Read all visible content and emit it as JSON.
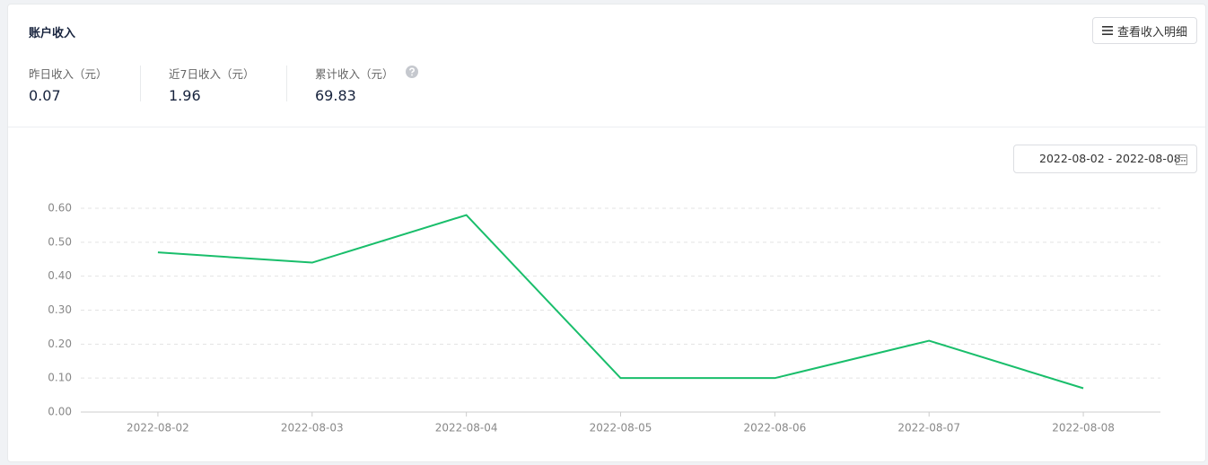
{
  "header": {
    "title": "账户收入",
    "button": "查看收入明细"
  },
  "stats": [
    {
      "label": "昨日收入（元）",
      "value": "0.07"
    },
    {
      "label": "近7日收入（元）",
      "value": "1.96"
    },
    {
      "label": "累计收入（元）",
      "value": "69.83"
    }
  ],
  "date_range": "2022-08-02 - 2022-08-08",
  "chart_data": {
    "type": "line",
    "categories": [
      "2022-08-02",
      "2022-08-03",
      "2022-08-04",
      "2022-08-05",
      "2022-08-06",
      "2022-08-07",
      "2022-08-08"
    ],
    "values": [
      0.47,
      0.44,
      0.58,
      0.1,
      0.1,
      0.21,
      0.07
    ],
    "color": "#19be6b",
    "ylim": [
      0,
      0.6
    ],
    "yticks": [
      {
        "value": 0,
        "label": "0.00"
      },
      {
        "value": 0.1,
        "label": "0.10"
      },
      {
        "value": 0.2,
        "label": "0.20"
      },
      {
        "value": 0.3,
        "label": "0.30"
      },
      {
        "value": 0.4,
        "label": "0.40"
      },
      {
        "value": 0.5,
        "label": "0.50"
      },
      {
        "value": 0.6,
        "label": "0.60"
      }
    ],
    "grid": true
  }
}
